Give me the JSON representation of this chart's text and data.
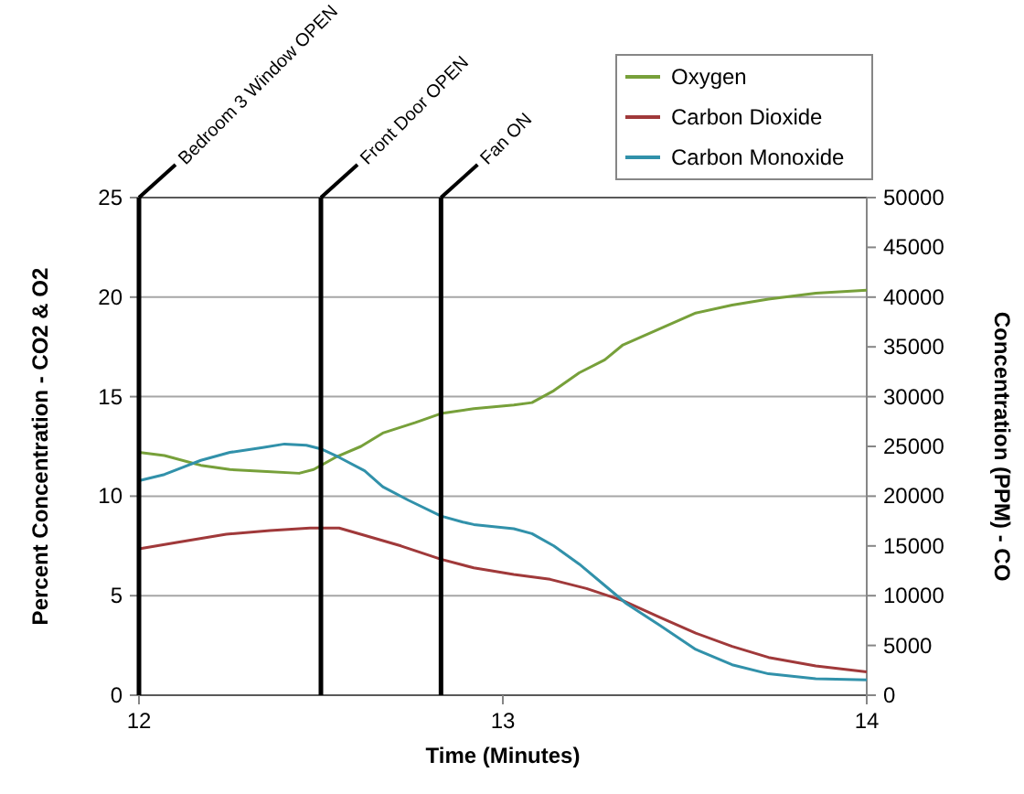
{
  "chart_data": {
    "type": "line",
    "xlabel": "Time (Minutes)",
    "ylabel": "Percent Concentration - CO2 & O2",
    "y2label": "Concentration (PPM) - CO",
    "xlim": [
      12,
      14
    ],
    "xticks": [
      12,
      13,
      14
    ],
    "ylim": [
      0,
      25
    ],
    "yticks": [
      0,
      5,
      10,
      15,
      20,
      25
    ],
    "y2lim": [
      0,
      50000
    ],
    "y2ticks": [
      0,
      5000,
      10000,
      15000,
      20000,
      25000,
      30000,
      35000,
      40000,
      45000,
      50000
    ],
    "grid": "y",
    "legend": "top right",
    "marker": "none",
    "line_style": "solid",
    "ref_lines": [
      {
        "axis": "x",
        "value": 12,
        "label": "Bedroom 3 Window OPEN",
        "color": "#000000"
      },
      {
        "axis": "x",
        "value": 12.5,
        "label": "Front Door OPEN",
        "color": "#000000"
      },
      {
        "axis": "x",
        "value": 12.83,
        "label": "Fan ON",
        "color": "#000000"
      }
    ],
    "series": [
      {
        "name": "Oxygen",
        "color": "#77a03a",
        "x": [
          12,
          12.07,
          12.17,
          12.25,
          12.34,
          12.44,
          12.48,
          12.54,
          12.61,
          12.67,
          12.76,
          12.83,
          12.92,
          13.03,
          13.08,
          13.14,
          13.21,
          13.28,
          13.33,
          13.43,
          13.53,
          13.63,
          13.73,
          13.86,
          14
        ],
        "values": [
          12.2,
          12.04,
          11.55,
          11.34,
          11.25,
          11.15,
          11.34,
          11.95,
          12.5,
          13.17,
          13.7,
          14.15,
          14.4,
          14.58,
          14.7,
          15.3,
          16.2,
          16.85,
          17.6,
          18.4,
          19.2,
          19.6,
          19.9,
          20.2,
          20.35
        ]
      },
      {
        "name": "Carbon Dioxide",
        "color": "#a0393a",
        "x": [
          12,
          12.1,
          12.24,
          12.36,
          12.47,
          12.55,
          12.62,
          12.72,
          12.83,
          12.92,
          13.03,
          13.13,
          13.23,
          13.33,
          13.43,
          13.53,
          13.63,
          13.73,
          13.86,
          14
        ],
        "values": [
          7.35,
          7.66,
          8.09,
          8.27,
          8.4,
          8.4,
          8.03,
          7.5,
          6.83,
          6.4,
          6.07,
          5.82,
          5.36,
          4.75,
          3.92,
          3.12,
          2.45,
          1.9,
          1.47,
          1.17
        ]
      },
      {
        "name": "Carbon Monoxide",
        "color": "#3191aa",
        "axis": "y2",
        "x": [
          12,
          12.07,
          12.17,
          12.25,
          12.34,
          12.4,
          12.46,
          12.5,
          12.55,
          12.62,
          12.67,
          12.74,
          12.83,
          12.89,
          12.92,
          13.03,
          13.08,
          13.14,
          13.21,
          13.28,
          13.34,
          13.43,
          13.53,
          13.63,
          13.73,
          13.86,
          14
        ],
        "values": [
          21560,
          22180,
          23600,
          24400,
          24880,
          25240,
          25120,
          24750,
          23900,
          22550,
          20950,
          19600,
          18000,
          17400,
          17150,
          16730,
          16230,
          15000,
          13170,
          11030,
          9190,
          7050,
          4600,
          3060,
          2150,
          1650,
          1530
        ]
      }
    ]
  }
}
